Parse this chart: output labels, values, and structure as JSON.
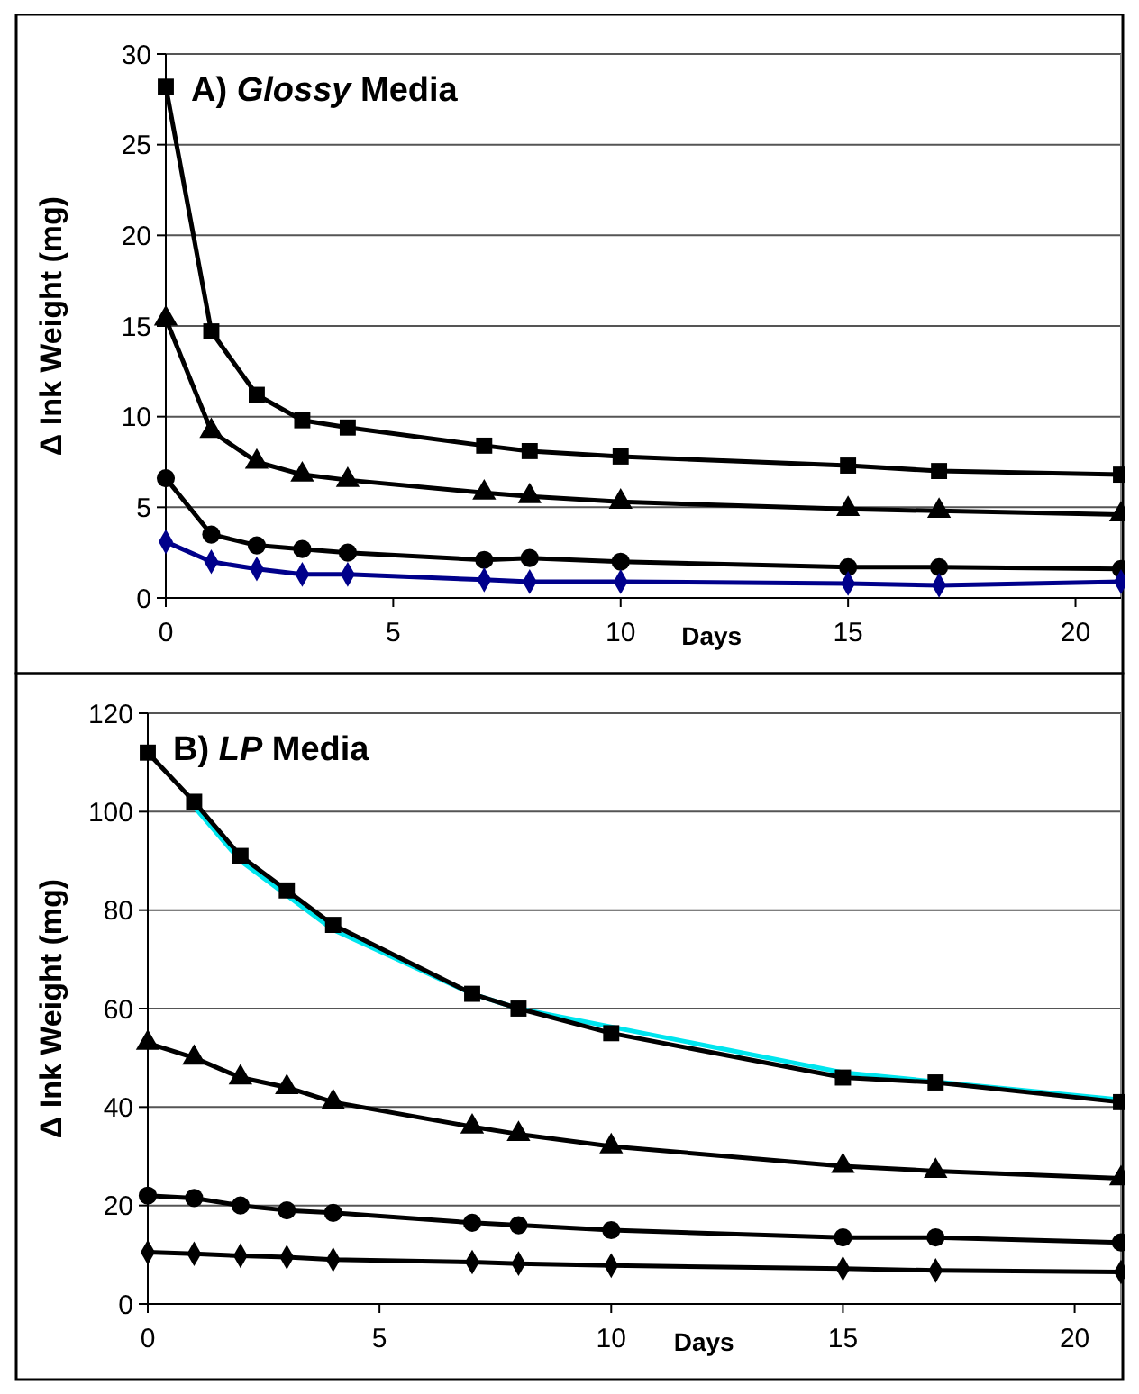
{
  "chart_data": [
    {
      "type": "line",
      "title": "A) Glossy Media",
      "xlabel": "Days",
      "ylabel": "Δ Ink Weight (mg)",
      "x": [
        0,
        1,
        2,
        3,
        4,
        7,
        8,
        10,
        15,
        17,
        21
      ],
      "xlim": [
        0,
        21
      ],
      "xticks": [
        0,
        5,
        10,
        15,
        20
      ],
      "ylim": [
        0,
        30
      ],
      "yticks": [
        0,
        5,
        10,
        15,
        20,
        25,
        30
      ],
      "grid": "y",
      "series": [
        {
          "color": "#000000",
          "marker": "square",
          "values": [
            28.2,
            14.7,
            11.2,
            9.8,
            9.4,
            8.4,
            8.1,
            7.8,
            7.3,
            7.0,
            6.8
          ]
        },
        {
          "color": "#000000",
          "marker": "triangle",
          "values": [
            15.4,
            9.2,
            7.5,
            6.8,
            6.5,
            5.8,
            5.6,
            5.3,
            4.9,
            4.8,
            4.6
          ]
        },
        {
          "color": "#000000",
          "marker": "circle",
          "values": [
            6.6,
            3.5,
            2.9,
            2.7,
            2.5,
            2.1,
            2.2,
            2.0,
            1.7,
            1.7,
            1.6
          ]
        },
        {
          "color": "#00008b",
          "marker": "diamond",
          "values": [
            3.1,
            2.0,
            1.6,
            1.3,
            1.3,
            1.0,
            0.9,
            0.9,
            0.8,
            0.7,
            0.9
          ]
        }
      ]
    },
    {
      "type": "line",
      "title": "B) LP Media",
      "xlabel": "Days",
      "ylabel": "Δ Ink Weight (mg)",
      "x": [
        0,
        1,
        2,
        3,
        4,
        7,
        8,
        10,
        15,
        17,
        21
      ],
      "xlim": [
        0,
        21
      ],
      "xticks": [
        0,
        5,
        10,
        15,
        20
      ],
      "ylim": [
        0,
        120
      ],
      "yticks": [
        0,
        20,
        40,
        60,
        80,
        100,
        120
      ],
      "grid": "y",
      "series": [
        {
          "color": "#00e5ee",
          "marker": "none",
          "values": [
            null,
            101,
            90,
            83,
            76,
            63,
            60,
            null,
            47,
            null,
            41.5
          ]
        },
        {
          "color": "#000000",
          "marker": "square",
          "values": [
            112,
            102,
            91,
            84,
            77,
            63,
            60,
            55,
            46,
            45,
            41
          ]
        },
        {
          "color": "#000000",
          "marker": "triangle",
          "values": [
            53,
            50,
            46,
            44,
            41,
            36,
            34.5,
            32,
            28,
            27,
            25.5
          ]
        },
        {
          "color": "#000000",
          "marker": "circle",
          "values": [
            22,
            21.5,
            20,
            19,
            18.5,
            16.5,
            16,
            15,
            13.5,
            13.5,
            12.5
          ]
        },
        {
          "color": "#000000",
          "marker": "diamond",
          "values": [
            10.5,
            10.2,
            9.8,
            9.5,
            9,
            8.5,
            8.2,
            7.8,
            7.2,
            6.8,
            6.5
          ]
        }
      ]
    }
  ]
}
